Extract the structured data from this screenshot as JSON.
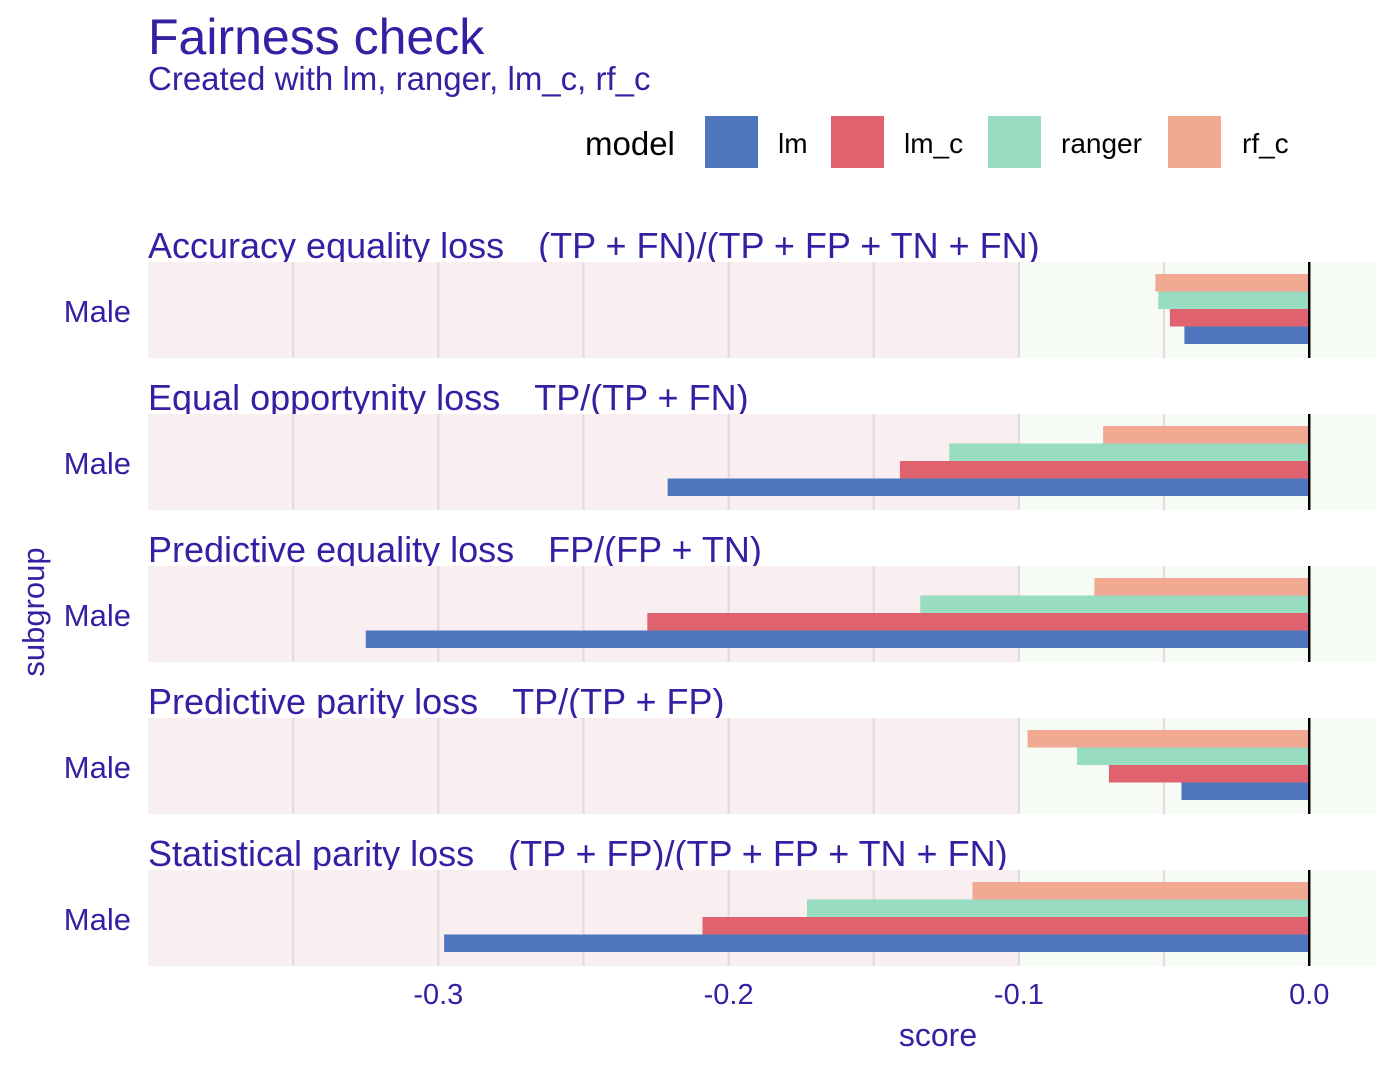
{
  "chart_data": {
    "type": "bar",
    "title": "Fairness check",
    "subtitle": "Created with lm, ranger, lm_c, rf_c",
    "xlabel": "score",
    "ylabel": "subgroup",
    "xlim": [
      -0.4,
      0.023
    ],
    "xticks": [
      -0.3,
      -0.2,
      -0.1,
      0.0
    ],
    "xtick_labels": [
      "-0.3",
      "-0.2",
      "-0.1",
      "0.0"
    ],
    "acceptable_range": [
      -0.1,
      0.023
    ],
    "grid": true,
    "legend": {
      "title": "model",
      "placement": "top-right",
      "entries": [
        "lm",
        "lm_c",
        "ranger",
        "rf_c"
      ]
    },
    "colors": {
      "lm": "#4f76bd",
      "lm_c": "#e0626f",
      "ranger": "#98dcc1",
      "rf_c": "#f2a991",
      "unfair_region": "#f9eff1",
      "fair_region": "#f6fbf6",
      "text": "#371ea3"
    },
    "panels": [
      {
        "metric": "Accuracy equality loss",
        "formula": "(TP + FN)/(TP + FP + TN + FN)",
        "subgroup": "Male",
        "series": [
          {
            "name": "rf_c",
            "value": -0.053
          },
          {
            "name": "ranger",
            "value": -0.052
          },
          {
            "name": "lm_c",
            "value": -0.048
          },
          {
            "name": "lm",
            "value": -0.043
          }
        ]
      },
      {
        "metric": "Equal opportynity loss",
        "formula": "TP/(TP + FN)",
        "subgroup": "Male",
        "series": [
          {
            "name": "rf_c",
            "value": -0.071
          },
          {
            "name": "ranger",
            "value": -0.124
          },
          {
            "name": "lm_c",
            "value": -0.141
          },
          {
            "name": "lm",
            "value": -0.221
          }
        ]
      },
      {
        "metric": "Predictive equality loss",
        "formula": "FP/(FP + TN)",
        "subgroup": "Male",
        "series": [
          {
            "name": "rf_c",
            "value": -0.074
          },
          {
            "name": "ranger",
            "value": -0.134
          },
          {
            "name": "lm_c",
            "value": -0.228
          },
          {
            "name": "lm",
            "value": -0.325
          }
        ]
      },
      {
        "metric": "Predictive parity loss",
        "formula": "TP/(TP + FP)",
        "subgroup": "Male",
        "series": [
          {
            "name": "rf_c",
            "value": -0.097
          },
          {
            "name": "ranger",
            "value": -0.08
          },
          {
            "name": "lm_c",
            "value": -0.069
          },
          {
            "name": "lm",
            "value": -0.044
          }
        ]
      },
      {
        "metric": "Statistical parity loss",
        "formula": "(TP + FP)/(TP + FP + TN + FN)",
        "subgroup": "Male",
        "series": [
          {
            "name": "rf_c",
            "value": -0.116
          },
          {
            "name": "ranger",
            "value": -0.173
          },
          {
            "name": "lm_c",
            "value": -0.209
          },
          {
            "name": "lm",
            "value": -0.298
          }
        ]
      }
    ]
  }
}
